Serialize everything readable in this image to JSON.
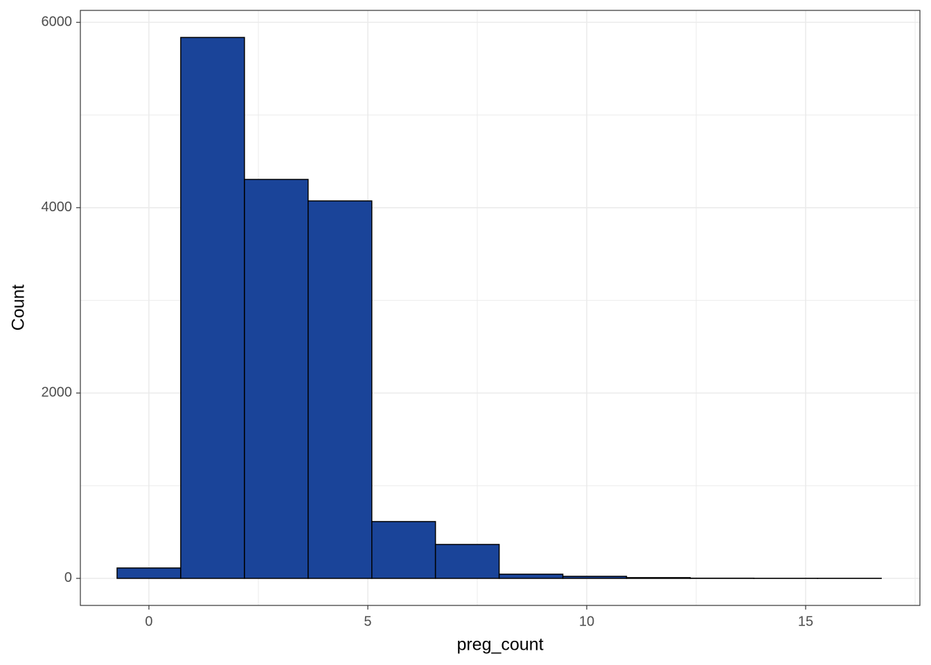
{
  "chart_data": {
    "type": "histogram",
    "x_label": "preg_count",
    "y_label": "Count",
    "bins": [
      -0.727,
      0.727,
      2.182,
      3.636,
      5.091,
      6.545,
      8.0,
      9.455,
      10.909,
      12.364,
      13.818,
      15.273,
      16.727
    ],
    "values": [
      112,
      5837,
      4305,
      4073,
      613,
      366,
      45,
      22,
      8,
      2,
      1,
      1
    ],
    "color": "#1a4499",
    "edge_color": "#000000",
    "xlim": [
      -1.566,
      17.61
    ],
    "ylim": [
      -292,
      6129
    ],
    "xticks": [
      0,
      5,
      10,
      15
    ],
    "yticks": [
      0,
      2000,
      4000,
      6000
    ],
    "minor_xticks": [
      2.5,
      7.5,
      12.5,
      17.5
    ],
    "minor_yticks": [
      1000,
      3000,
      5000
    ],
    "grid": true
  }
}
